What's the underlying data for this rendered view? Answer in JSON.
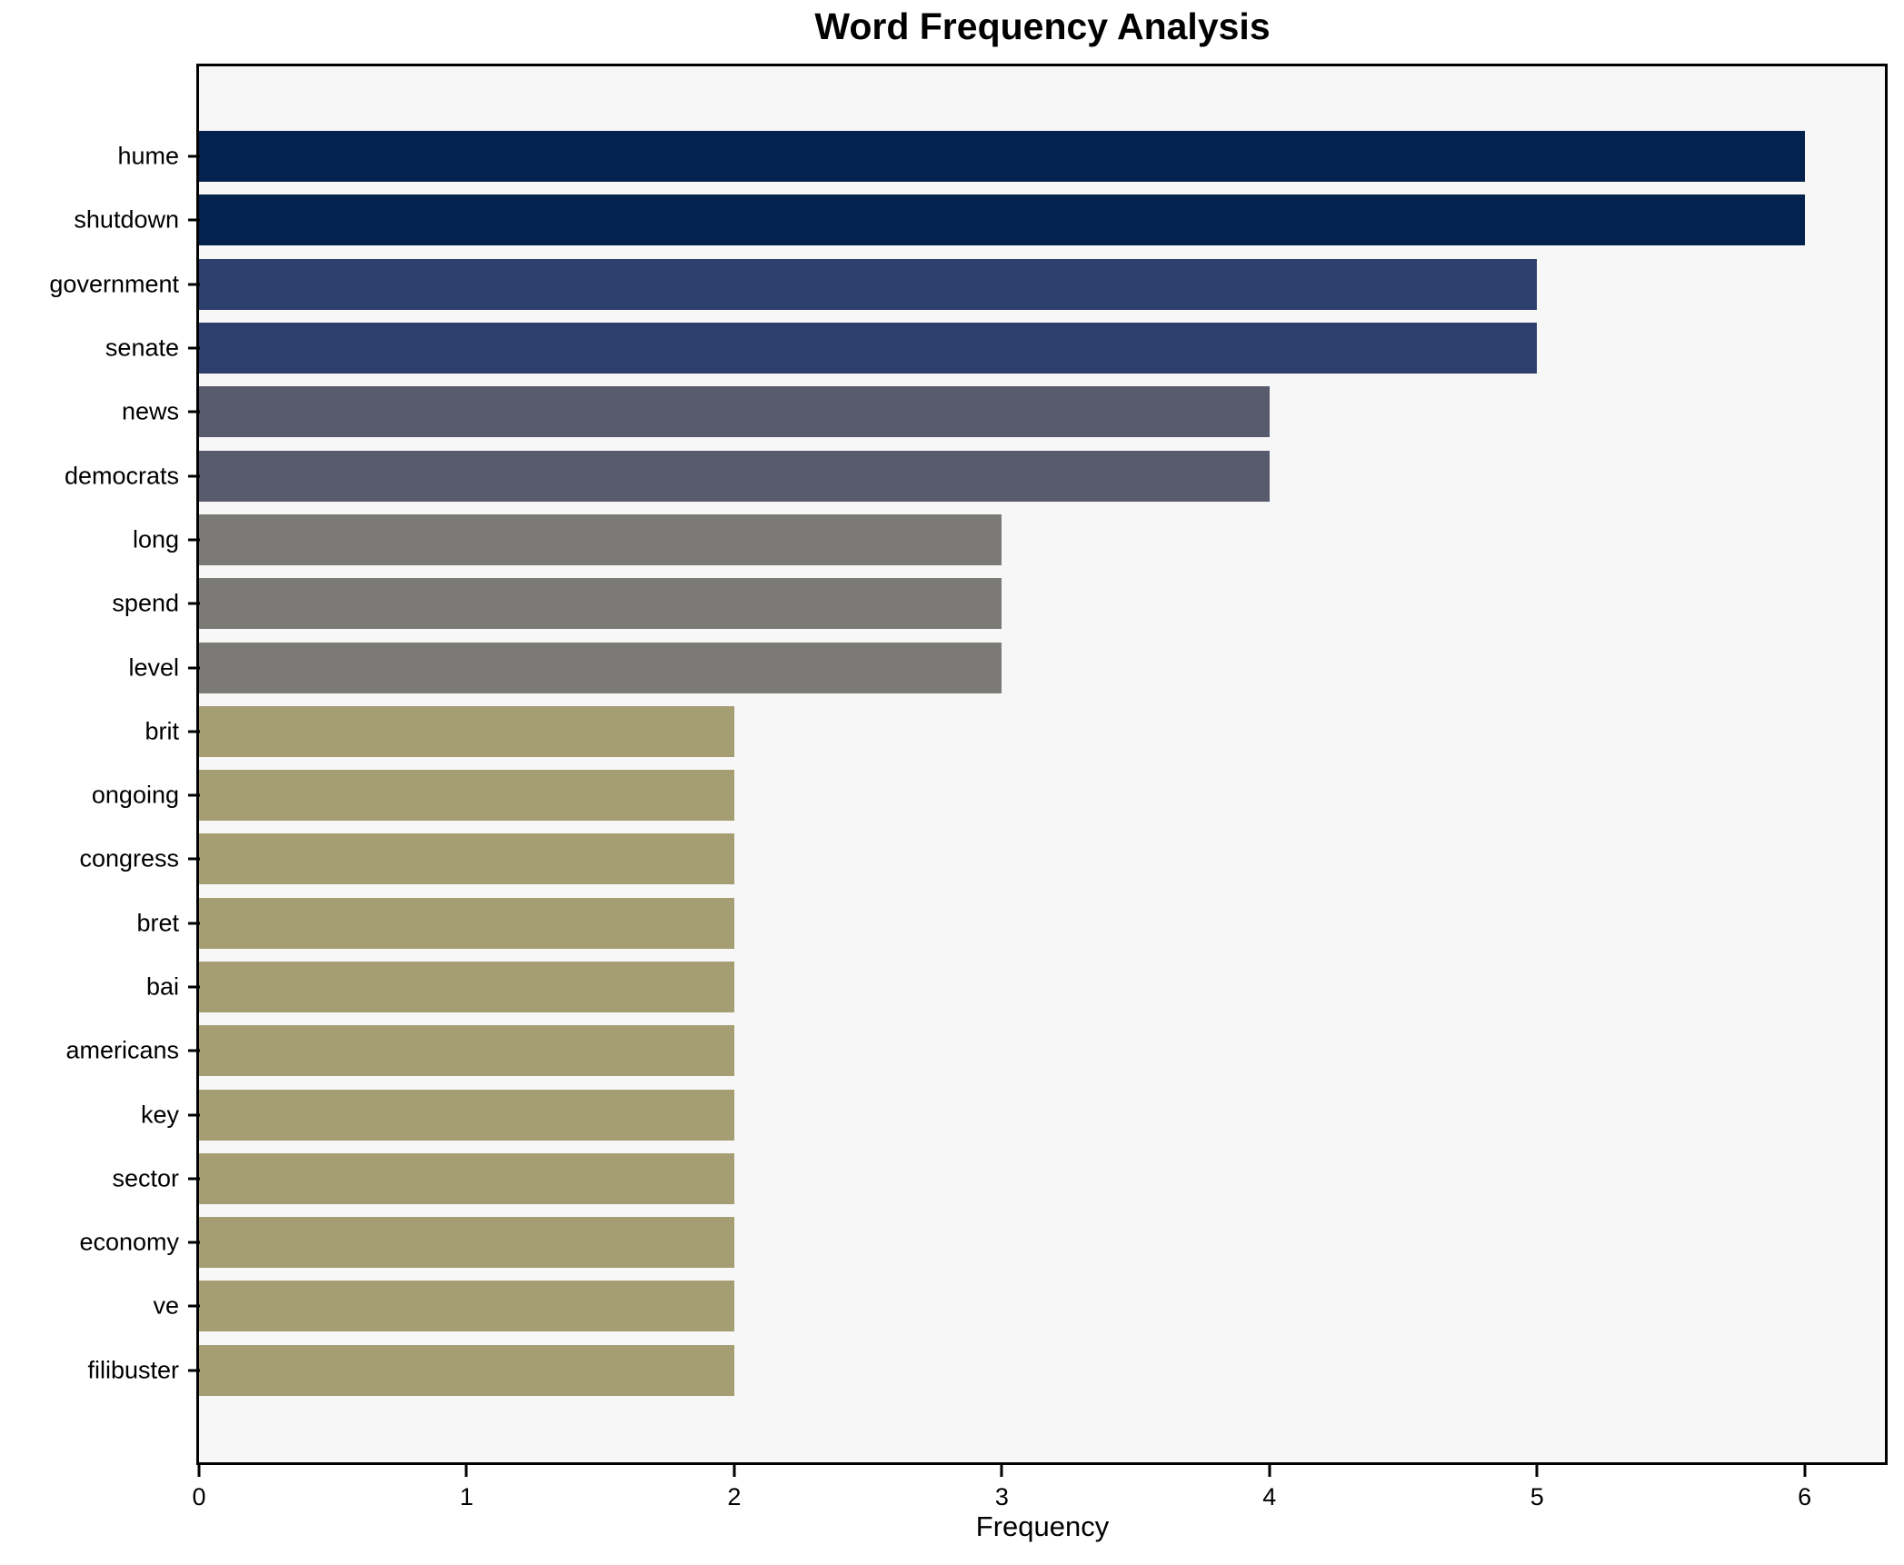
{
  "chart_data": {
    "type": "bar",
    "orientation": "horizontal",
    "title": "Word Frequency Analysis",
    "xlabel": "Frequency",
    "ylabel": "",
    "categories": [
      "hume",
      "shutdown",
      "government",
      "senate",
      "news",
      "democrats",
      "long",
      "spend",
      "level",
      "brit",
      "ongoing",
      "congress",
      "bret",
      "bai",
      "americans",
      "key",
      "sector",
      "economy",
      "ve",
      "filibuster"
    ],
    "values": [
      6,
      6,
      5,
      5,
      4,
      4,
      3,
      3,
      3,
      2,
      2,
      2,
      2,
      2,
      2,
      2,
      2,
      2,
      2,
      2
    ],
    "bar_colors": [
      "#03234e",
      "#03234e",
      "#2d3f6c",
      "#2d3f6c",
      "#575b6c",
      "#575b6c",
      "#7b7a76",
      "#7b7a76",
      "#7b7a76",
      "#a69e73",
      "#a69e73",
      "#a69e73",
      "#a69e73",
      "#a69e73",
      "#a69e73",
      "#a69e73",
      "#a69e73",
      "#a69e73",
      "#a69e73",
      "#a69e73"
    ],
    "xlim": [
      0,
      6.3
    ],
    "xticks": [
      0,
      1,
      2,
      3,
      4,
      5,
      6
    ],
    "grid": false,
    "legend_position": "none",
    "colors": {
      "plot_bg": "#f7f7f7",
      "figure_bg": "#ffffff",
      "axis": "#000000",
      "text": "#000000"
    }
  }
}
